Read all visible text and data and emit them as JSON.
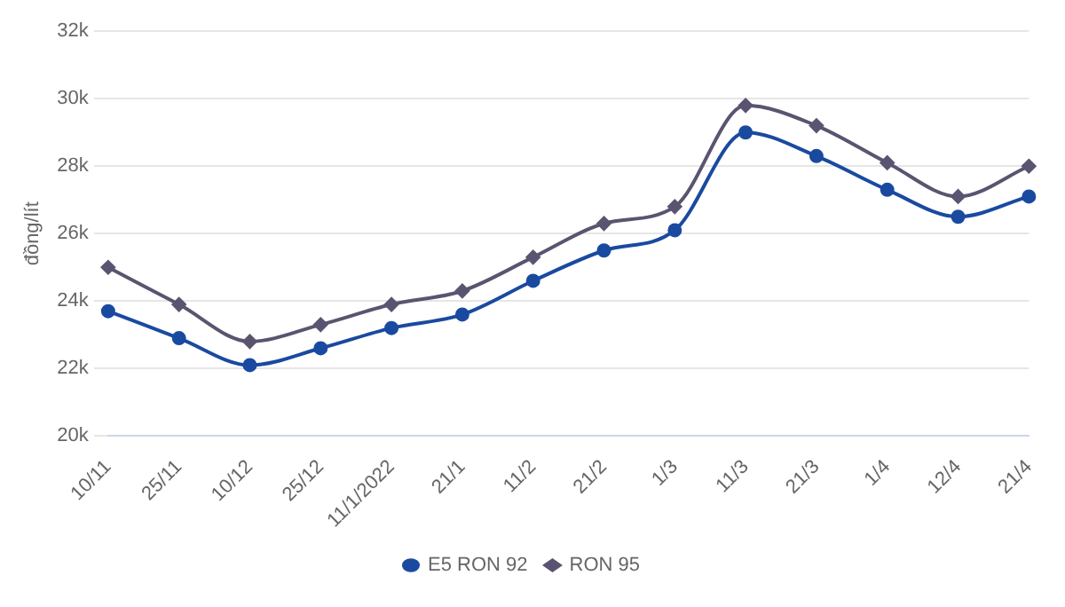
{
  "chart_data": {
    "type": "line",
    "ylabel": "đồng/lít",
    "categories": [
      "10/11",
      "25/11",
      "10/12",
      "25/12",
      "11/1/2022",
      "21/1",
      "11/2",
      "21/2",
      "1/3",
      "11/3",
      "21/3",
      "1/4",
      "12/4",
      "21/4"
    ],
    "series": [
      {
        "name": "E5 RON 92",
        "color": "#1a4aa0",
        "marker": "circle",
        "values": [
          23.7,
          22.9,
          22.1,
          22.6,
          23.2,
          23.6,
          24.6,
          25.5,
          26.1,
          29.0,
          28.3,
          27.3,
          26.5,
          27.1
        ]
      },
      {
        "name": "RON 95",
        "color": "#5b5470",
        "marker": "diamond",
        "values": [
          25.0,
          23.9,
          22.8,
          23.3,
          23.9,
          24.3,
          25.3,
          26.3,
          26.8,
          29.8,
          29.2,
          28.1,
          27.1,
          28.0
        ]
      }
    ],
    "ylim": [
      20,
      32
    ],
    "yticks": [
      {
        "value": 20,
        "label": "20k"
      },
      {
        "value": 22,
        "label": "22k"
      },
      {
        "value": 24,
        "label": "24k"
      },
      {
        "value": 26,
        "label": "26k"
      },
      {
        "value": 28,
        "label": "28k"
      },
      {
        "value": 30,
        "label": "30k"
      },
      {
        "value": 32,
        "label": "32k"
      }
    ],
    "grid": "y",
    "legend": "bottom"
  }
}
